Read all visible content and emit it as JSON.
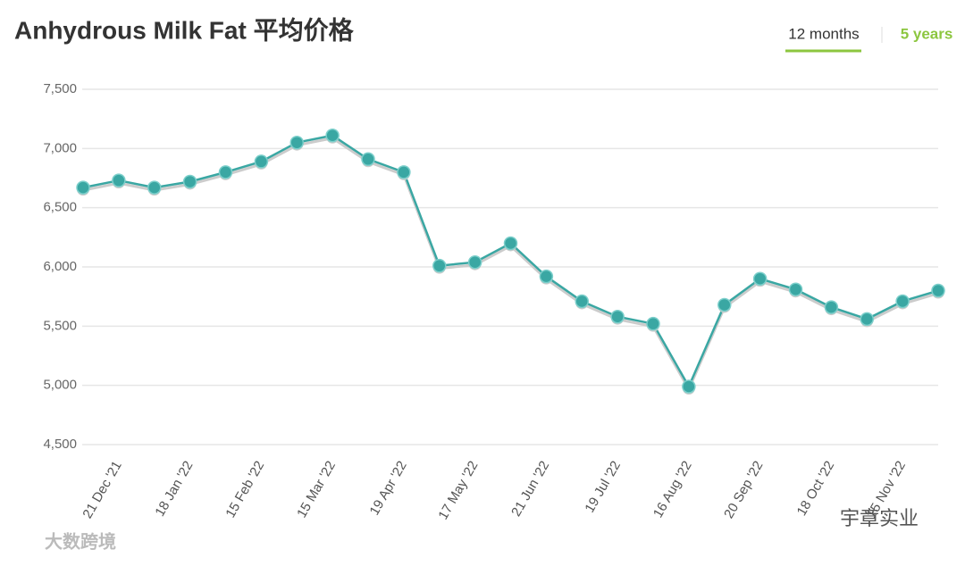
{
  "chart_data": {
    "type": "line",
    "title": "Anhydrous Milk Fat 平均价格",
    "tabs": [
      "12 months",
      "5 years"
    ],
    "watermarks": [
      "大数跨境",
      "宇章实业"
    ],
    "categories": [
      null,
      "21 Dec '21",
      null,
      "18 Jan '22",
      null,
      "15 Feb '22",
      null,
      "15 Mar '22",
      null,
      "19 Apr '22",
      null,
      "17 May '22",
      null,
      "21 Jun '22",
      null,
      "19 Jul '22",
      null,
      "16 Aug '22",
      null,
      "20 Sep '22",
      null,
      "18 Oct '22",
      null,
      "15 Nov '22",
      null
    ],
    "series": [
      {
        "name": "Anhydrous Milk Fat",
        "color": "#3aa7a3",
        "values": [
          6670,
          6730,
          6670,
          6720,
          6800,
          6890,
          7050,
          7110,
          6910,
          6800,
          6010,
          6040,
          6200,
          5920,
          5710,
          5580,
          5520,
          4990,
          5680,
          5900,
          5810,
          5660,
          5560,
          5710,
          5800
        ]
      }
    ],
    "ylim": [
      4500,
      7500
    ],
    "yticks": [
      {
        "value": 4500,
        "label": "4,500"
      },
      {
        "value": 5000,
        "label": "5,000"
      },
      {
        "value": 5500,
        "label": "5,500"
      },
      {
        "value": 6000,
        "label": "6,000"
      },
      {
        "value": 6500,
        "label": "6,500"
      },
      {
        "value": 7000,
        "label": "7,000"
      },
      {
        "value": 7500,
        "label": "7,500"
      }
    ],
    "grid": true
  }
}
